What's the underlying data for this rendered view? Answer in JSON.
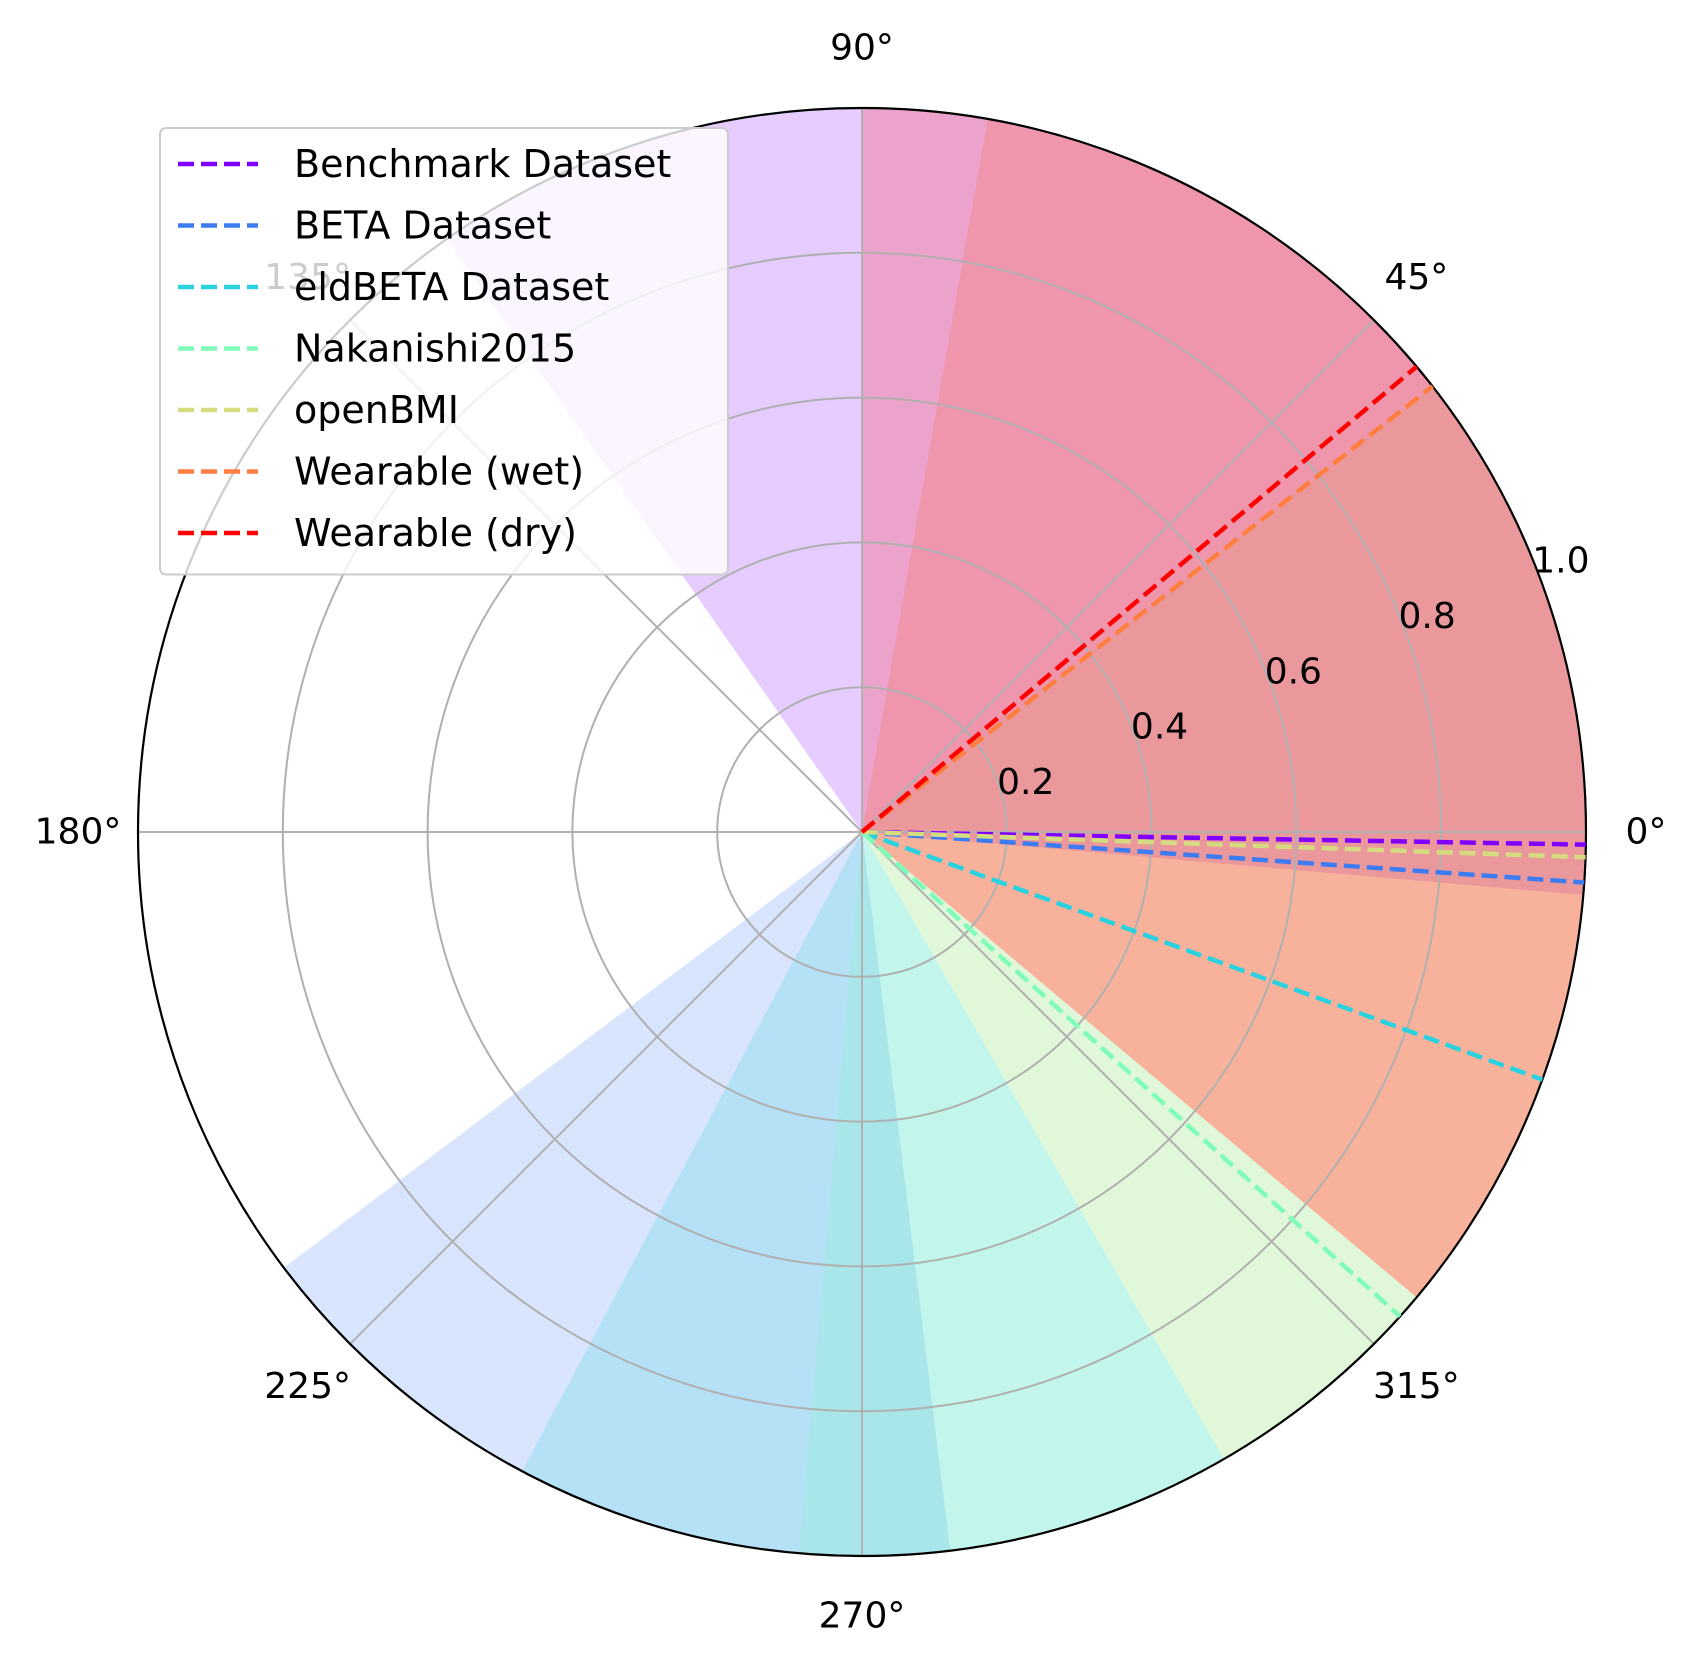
{
  "chart_data": {
    "type": "polar",
    "title": "",
    "theta_unit": "degrees",
    "radial_range": [
      0,
      1.0
    ],
    "radial_ticks": [
      "0.2",
      "0.4",
      "0.6",
      "0.8",
      "1.0"
    ],
    "radial_tick_values": [
      0.2,
      0.4,
      0.6,
      0.8,
      1.0
    ],
    "angular_ticks": [
      "0°",
      "45°",
      "90°",
      "135°",
      "180°",
      "225°",
      "270°",
      "315°"
    ],
    "angular_tick_values": [
      0,
      45,
      90,
      135,
      180,
      225,
      270,
      315
    ],
    "grid": true,
    "legend_position": "upper-left",
    "series": [
      {
        "name": "Benchmark Dataset",
        "color": "#8000ff",
        "line_angle": -1,
        "band": [
          -5,
          125
        ]
      },
      {
        "name": "BETA Dataset",
        "color": "#3d7cf2",
        "line_angle": -4,
        "band": [
          -143,
          -83
        ]
      },
      {
        "name": "eldBETA Dataset",
        "color": "#2ad2df",
        "line_angle": -20,
        "band": [
          -118,
          -60
        ]
      },
      {
        "name": "Nakanishi2015",
        "color": "#7ffcb9",
        "line_angle": -42,
        "band": [
          -95,
          -40
        ]
      },
      {
        "name": "openBMI",
        "color": "#d4dc7f",
        "line_angle": -2,
        "band": [
          -60,
          38
        ]
      },
      {
        "name": "Wearable (wet)",
        "color": "#ff7f40",
        "line_angle": 38,
        "band": [
          -40,
          80
        ]
      },
      {
        "name": "Wearable (dry)",
        "color": "#ff0000",
        "line_angle": 40,
        "band": [
          -40,
          90
        ]
      }
    ]
  }
}
